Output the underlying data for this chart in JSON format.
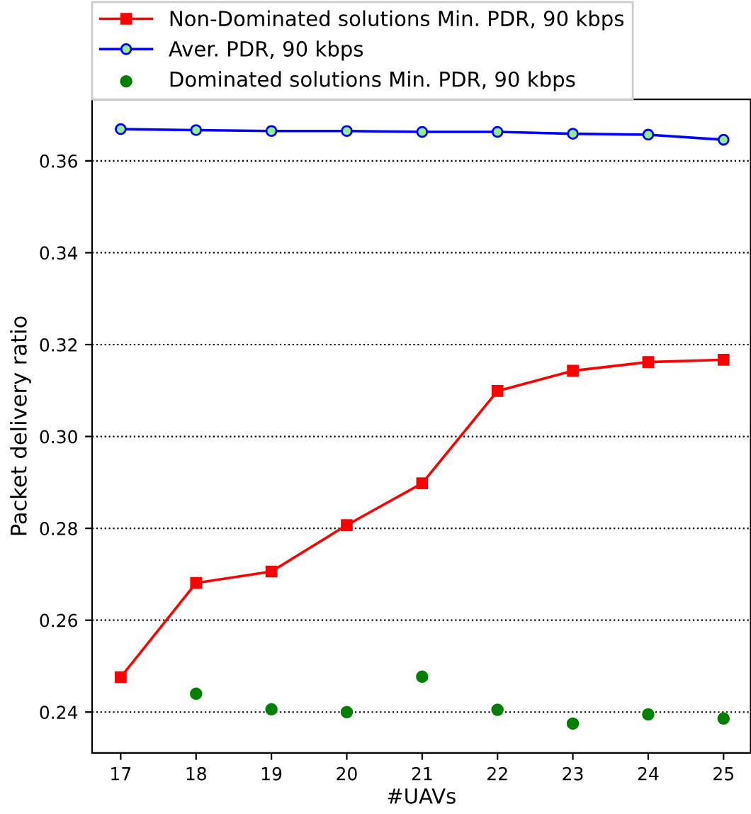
{
  "chart_data": {
    "type": "line",
    "xlabel": "#UAVs",
    "ylabel": "Packet delivery ratio",
    "x": [
      17,
      18,
      19,
      20,
      21,
      22,
      23,
      24,
      25
    ],
    "series": [
      {
        "name": "Non-Dominated solutions Min. PDR, 90 kbps",
        "color": "#ff0000",
        "marker": "square",
        "values": [
          0.2476,
          0.2681,
          0.2706,
          0.2807,
          0.2898,
          0.3099,
          0.3143,
          0.3162,
          0.3167
        ]
      },
      {
        "name": "Aver. PDR, 90 kbps",
        "color": "#0000ff",
        "marker": "circle",
        "values": [
          0.3669,
          0.3667,
          0.3665,
          0.3665,
          0.3663,
          0.3663,
          0.3659,
          0.3657,
          0.3646
        ]
      },
      {
        "name": "Dominated solutions Min. PDR, 90 kbps",
        "type": "scatter",
        "color": "#008000",
        "marker": "circle",
        "values": [
          null,
          0.244,
          0.2406,
          0.24,
          0.2477,
          0.2405,
          0.2375,
          0.2395,
          0.2386
        ]
      }
    ],
    "xlim": [
      16.62,
      25.36
    ],
    "ylim": [
      0.2311,
      0.3734
    ],
    "xticks": [
      17,
      18,
      19,
      20,
      21,
      22,
      23,
      24,
      25
    ],
    "yticks": [
      {
        "value": 0.24,
        "label": "0.24"
      },
      {
        "value": 0.26,
        "label": "0.26"
      },
      {
        "value": 0.28,
        "label": "0.28"
      },
      {
        "value": 0.3,
        "label": "0.30"
      },
      {
        "value": 0.32,
        "label": "0.32"
      },
      {
        "value": 0.34,
        "label": "0.34"
      },
      {
        "value": 0.36,
        "label": "0.36"
      }
    ],
    "grid": "y",
    "legend": "top"
  }
}
